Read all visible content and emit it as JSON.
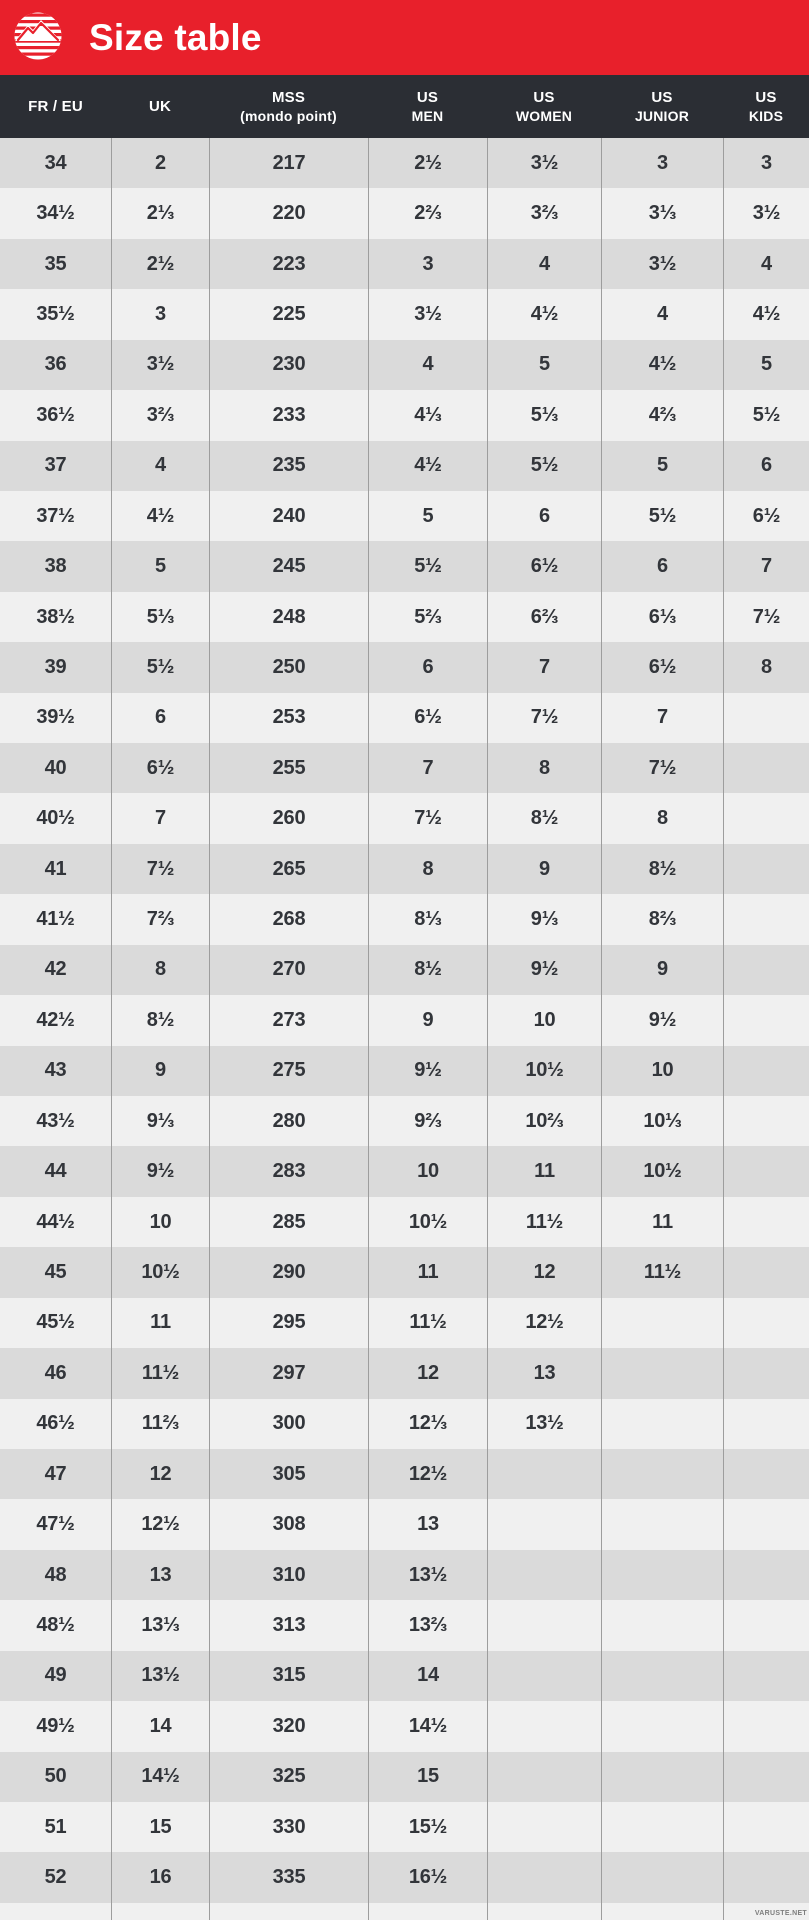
{
  "header": {
    "title": "Size table",
    "logo": "brand-mountain-logo"
  },
  "colors": {
    "banner_red": "#e8202b",
    "table_header_dark": "#2b2e34",
    "row_dark": "#dadada",
    "row_light": "#f0f0f0",
    "grid_line": "#9d9d9d",
    "cell_text": "#32353a"
  },
  "table": {
    "columns": [
      {
        "label": "FR / EU",
        "sublabel": ""
      },
      {
        "label": "UK",
        "sublabel": ""
      },
      {
        "label": "MSS",
        "sublabel": "(mondo point)"
      },
      {
        "label": "US",
        "sublabel": "MEN"
      },
      {
        "label": "US",
        "sublabel": "WOMEN"
      },
      {
        "label": "US",
        "sublabel": "JUNIOR"
      },
      {
        "label": "US",
        "sublabel": "KIDS"
      }
    ],
    "rows": [
      [
        "34",
        "2",
        "217",
        "2½",
        "3½",
        "3",
        "3"
      ],
      [
        "34½",
        "2⅓",
        "220",
        "2⅔",
        "3⅔",
        "3⅓",
        "3½"
      ],
      [
        "35",
        "2½",
        "223",
        "3",
        "4",
        "3½",
        "4"
      ],
      [
        "35½",
        "3",
        "225",
        "3½",
        "4½",
        "4",
        "4½"
      ],
      [
        "36",
        "3½",
        "230",
        "4",
        "5",
        "4½",
        "5"
      ],
      [
        "36½",
        "3⅔",
        "233",
        "4⅓",
        "5⅓",
        "4⅔",
        "5½"
      ],
      [
        "37",
        "4",
        "235",
        "4½",
        "5½",
        "5",
        "6"
      ],
      [
        "37½",
        "4½",
        "240",
        "5",
        "6",
        "5½",
        "6½"
      ],
      [
        "38",
        "5",
        "245",
        "5½",
        "6½",
        "6",
        "7"
      ],
      [
        "38½",
        "5⅓",
        "248",
        "5⅔",
        "6⅔",
        "6⅓",
        "7½"
      ],
      [
        "39",
        "5½",
        "250",
        "6",
        "7",
        "6½",
        "8"
      ],
      [
        "39½",
        "6",
        "253",
        "6½",
        "7½",
        "7",
        ""
      ],
      [
        "40",
        "6½",
        "255",
        "7",
        "8",
        "7½",
        ""
      ],
      [
        "40½",
        "7",
        "260",
        "7½",
        "8½",
        "8",
        ""
      ],
      [
        "41",
        "7½",
        "265",
        "8",
        "9",
        "8½",
        ""
      ],
      [
        "41½",
        "7⅔",
        "268",
        "8⅓",
        "9⅓",
        "8⅔",
        ""
      ],
      [
        "42",
        "8",
        "270",
        "8½",
        "9½",
        "9",
        ""
      ],
      [
        "42½",
        "8½",
        "273",
        "9",
        "10",
        "9½",
        ""
      ],
      [
        "43",
        "9",
        "275",
        "9½",
        "10½",
        "10",
        ""
      ],
      [
        "43½",
        "9⅓",
        "280",
        "9⅔",
        "10⅔",
        "10⅓",
        ""
      ],
      [
        "44",
        "9½",
        "283",
        "10",
        "11",
        "10½",
        ""
      ],
      [
        "44½",
        "10",
        "285",
        "10½",
        "11½",
        "11",
        ""
      ],
      [
        "45",
        "10½",
        "290",
        "11",
        "12",
        "11½",
        ""
      ],
      [
        "45½",
        "11",
        "295",
        "11½",
        "12½",
        "",
        ""
      ],
      [
        "46",
        "11½",
        "297",
        "12",
        "13",
        "",
        ""
      ],
      [
        "46½",
        "11⅔",
        "300",
        "12⅓",
        "13½",
        "",
        ""
      ],
      [
        "47",
        "12",
        "305",
        "12½",
        "",
        "",
        ""
      ],
      [
        "47½",
        "12½",
        "308",
        "13",
        "",
        "",
        ""
      ],
      [
        "48",
        "13",
        "310",
        "13½",
        "",
        "",
        ""
      ],
      [
        "48½",
        "13⅓",
        "313",
        "13⅔",
        "",
        "",
        ""
      ],
      [
        "49",
        "13½",
        "315",
        "14",
        "",
        "",
        ""
      ],
      [
        "49½",
        "14",
        "320",
        "14½",
        "",
        "",
        ""
      ],
      [
        "50",
        "14½",
        "325",
        "15",
        "",
        "",
        ""
      ],
      [
        "51",
        "15",
        "330",
        "15½",
        "",
        "",
        ""
      ],
      [
        "52",
        "16",
        "335",
        "16½",
        "",
        "",
        ""
      ]
    ]
  },
  "footer": {
    "watermark": "VARUSTE.NET"
  }
}
